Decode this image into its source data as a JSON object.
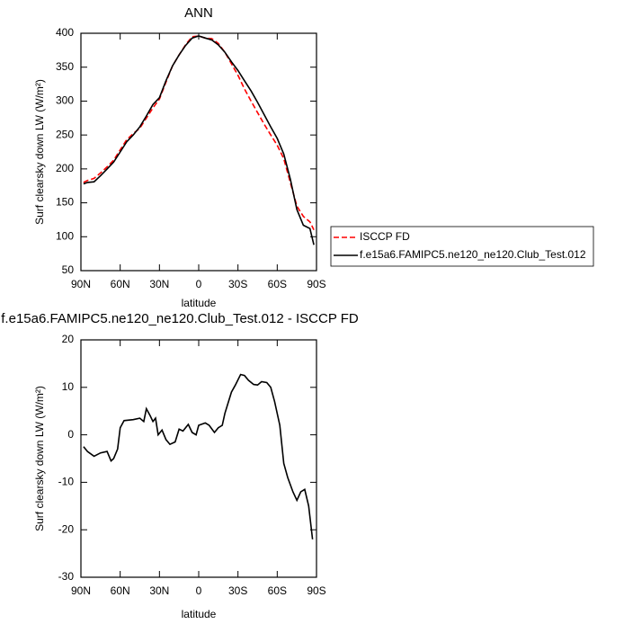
{
  "chart_data": [
    {
      "type": "line",
      "title": "ANN",
      "x_label": "latitude",
      "y_label": "Surf clearsky down LW (W/m²)",
      "xlim": [
        90,
        -90
      ],
      "ylim": [
        50,
        400
      ],
      "xticks": [
        {
          "value": 90,
          "label": "90N"
        },
        {
          "value": 60,
          "label": "60N"
        },
        {
          "value": 30,
          "label": "30N"
        },
        0,
        {
          "value": -30,
          "label": "30S"
        },
        {
          "value": -60,
          "label": "60S"
        },
        {
          "value": -90,
          "label": "90S"
        }
      ],
      "yticks": [
        50,
        100,
        150,
        200,
        250,
        300,
        350,
        400
      ],
      "legend": "right",
      "x": [
        88,
        85,
        80,
        75,
        70,
        65,
        60,
        55,
        50,
        45,
        40,
        35,
        30,
        25,
        20,
        15,
        10,
        5,
        0,
        -5,
        -10,
        -15,
        -20,
        -25,
        -30,
        -35,
        -40,
        -45,
        -50,
        -55,
        -60,
        -65,
        -70,
        -75,
        -80,
        -85,
        -88
      ],
      "series": [
        {
          "name": "ISCCP FD",
          "color": "#ff0000",
          "style": "dashed",
          "values": [
            180,
            183,
            186,
            194,
            203,
            213,
            228,
            243,
            252,
            260,
            275,
            290,
            303,
            328,
            352,
            368,
            383,
            395,
            396,
            393,
            392,
            385,
            372,
            355,
            338,
            318,
            300,
            283,
            266,
            250,
            235,
            215,
            180,
            145,
            130,
            122,
            110
          ]
        },
        {
          "name": "f.e15a6.FAMIPC5.ne120_ne120.Club_Test.012",
          "color": "#000000",
          "style": "solid",
          "values": [
            178,
            180,
            181,
            190,
            200,
            210,
            225,
            240,
            250,
            262,
            278,
            295,
            305,
            330,
            352,
            368,
            382,
            393,
            396,
            393,
            390,
            383,
            372,
            358,
            345,
            330,
            315,
            298,
            280,
            262,
            245,
            222,
            185,
            140,
            117,
            112,
            88
          ]
        }
      ]
    },
    {
      "type": "line",
      "title": "f.e15a6.FAMIPC5.ne120_ne120.Club_Test.012 - ISCCP FD",
      "x_label": "latitude",
      "y_label": "Surf clearsky down LW (W/m²)",
      "xlim": [
        90,
        -90
      ],
      "ylim": [
        -30,
        20
      ],
      "xticks": [
        {
          "value": 90,
          "label": "90N"
        },
        {
          "value": 60,
          "label": "60N"
        },
        {
          "value": 30,
          "label": "30N"
        },
        0,
        {
          "value": -30,
          "label": "30S"
        },
        {
          "value": -60,
          "label": "60S"
        },
        {
          "value": -90,
          "label": "90S"
        }
      ],
      "yticks": [
        -30,
        -20,
        -10,
        0,
        10,
        20
      ],
      "x": [
        88,
        85,
        80,
        75,
        70,
        67,
        65,
        62,
        60,
        57,
        50,
        45,
        42,
        40,
        37,
        35,
        33,
        31,
        28,
        25,
        22,
        18,
        15,
        12,
        8,
        5,
        2,
        0,
        -5,
        -8,
        -12,
        -15,
        -18,
        -20,
        -25,
        -28,
        -32,
        -35,
        -38,
        -42,
        -45,
        -48,
        -52,
        -55,
        -58,
        -62,
        -65,
        -68,
        -72,
        -75,
        -78,
        -81,
        -84,
        -87
      ],
      "series": [
        {
          "color": "#000000",
          "style": "solid",
          "values": [
            -2.5,
            -3.5,
            -4.5,
            -3.8,
            -3.5,
            -5.5,
            -5,
            -3,
            1.5,
            3,
            3.2,
            3.5,
            2.8,
            5.5,
            4,
            2.8,
            3.5,
            0,
            1,
            -1,
            -2,
            -1.5,
            1.2,
            0.8,
            2.2,
            0.5,
            0,
            2,
            2.5,
            2,
            0.5,
            1.5,
            2,
            4.5,
            9,
            10.5,
            12.7,
            12.5,
            11.5,
            10.6,
            10.5,
            11.2,
            11,
            10,
            7,
            2,
            -6,
            -9,
            -12,
            -13.8,
            -12,
            -11.5,
            -15,
            -22
          ]
        }
      ]
    }
  ]
}
